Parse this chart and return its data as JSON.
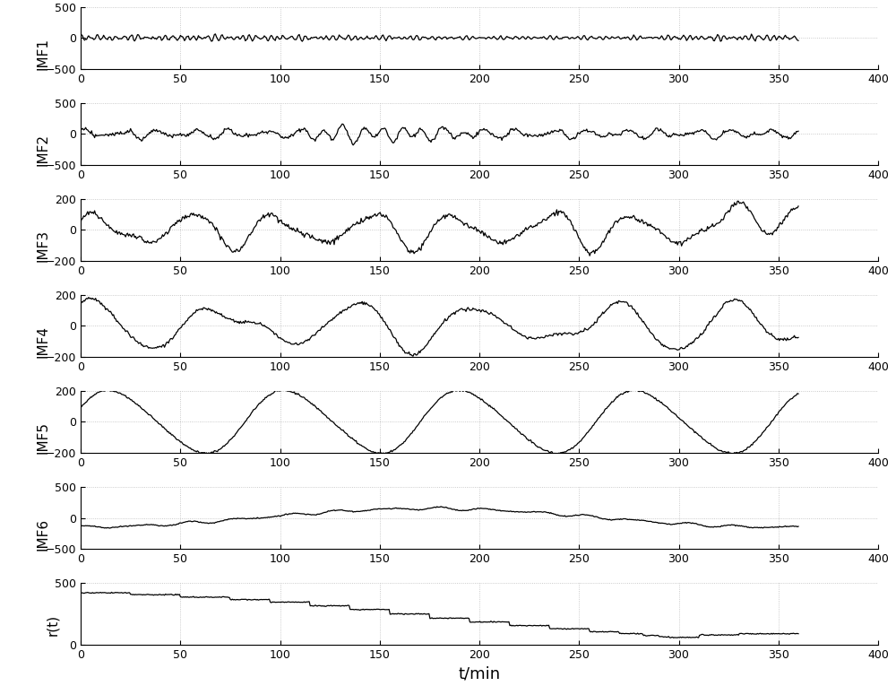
{
  "n_points": 720,
  "xlim": [
    0,
    400
  ],
  "xticks": [
    0,
    50,
    100,
    150,
    200,
    250,
    300,
    350,
    400
  ],
  "xlabel": "t/min",
  "subplots": [
    {
      "label": "IMF1",
      "ylim": [
        -500,
        500
      ],
      "yticks": [
        -500,
        0,
        500
      ]
    },
    {
      "label": "IMF2",
      "ylim": [
        -500,
        500
      ],
      "yticks": [
        -500,
        0,
        500
      ]
    },
    {
      "label": "IMF3",
      "ylim": [
        -200,
        200
      ],
      "yticks": [
        -200,
        0,
        200
      ]
    },
    {
      "label": "IMF4",
      "ylim": [
        -200,
        200
      ],
      "yticks": [
        -200,
        0,
        200
      ]
    },
    {
      "label": "IMF5",
      "ylim": [
        -200,
        200
      ],
      "yticks": [
        -200,
        0,
        200
      ]
    },
    {
      "label": "IMF6",
      "ylim": [
        -500,
        500
      ],
      "yticks": [
        -500,
        0,
        500
      ]
    },
    {
      "label": "r(t)",
      "ylim": [
        0,
        500
      ],
      "yticks": [
        0,
        500
      ]
    }
  ],
  "line_color": "#000000",
  "line_width": 0.9,
  "grid_color": "#bbbbbb",
  "grid_style": ":",
  "bg_color": "#ffffff",
  "label_rotation": 90,
  "fig_width": 10.0,
  "fig_height": 7.65
}
